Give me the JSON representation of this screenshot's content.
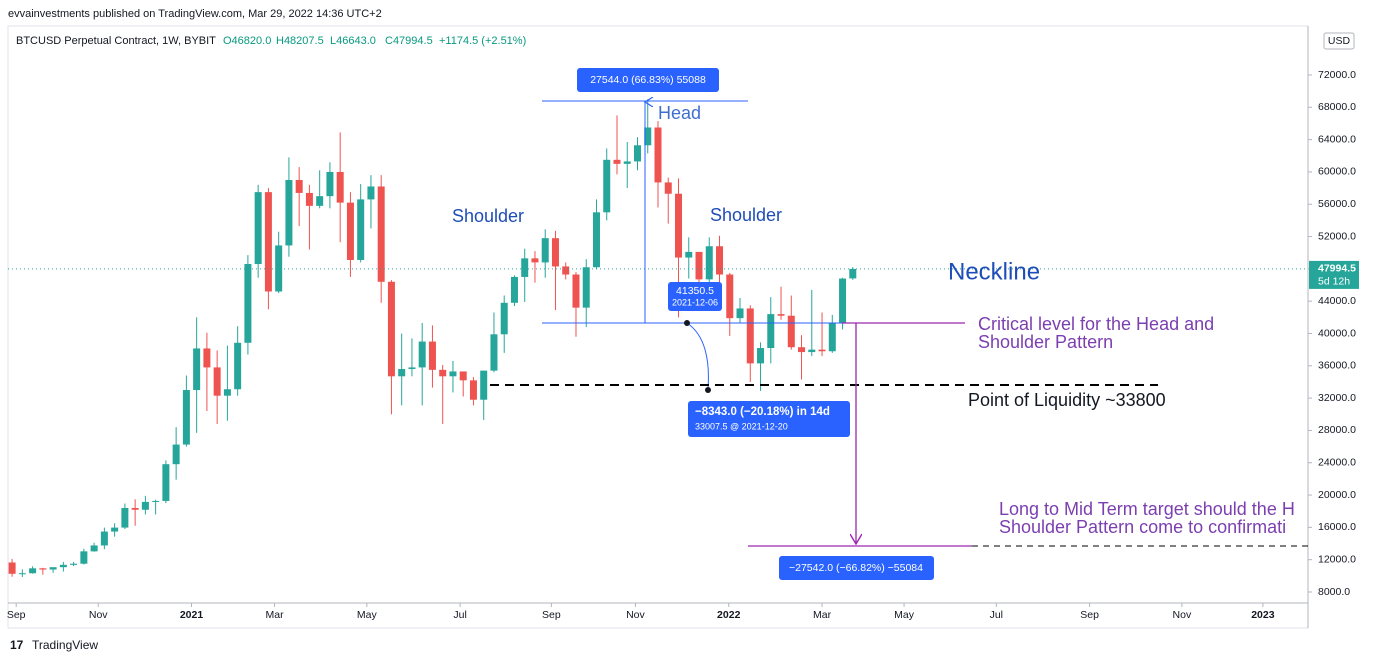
{
  "header": {
    "published": "evvainvestments published on TradingView.com, Mar 29, 2022 14:36 UTC+2",
    "symbol": "BTCUSD Perpetual Contract, 1W, BYBIT",
    "o": "O46820.0",
    "h": "H48207.5",
    "l": "L46643.0",
    "c": "C47994.5",
    "change": "+1174.5 (+2.51%)"
  },
  "chart_data": {
    "type": "candlestick",
    "open": [
      11650,
      10250,
      10320,
      10930,
      10780,
      11070,
      11360,
      11500,
      13030,
      13760,
      15480,
      15970,
      18400,
      18180,
      19150,
      19270,
      23820,
      26250,
      33000,
      38150,
      35800,
      32300,
      33100,
      38850,
      48600,
      57500,
      45200,
      50900,
      59000,
      57400,
      55800,
      57000,
      60000,
      56200,
      49100,
      56600,
      58200,
      46400,
      34700,
      35600,
      35800,
      39000,
      35500,
      34700,
      35300,
      34200,
      31800,
      35400,
      39900,
      43800,
      47000,
      49300,
      48800,
      51800,
      48300,
      47300,
      43200,
      48200,
      55000,
      61500,
      61000,
      61300,
      63300,
      65500,
      58700,
      57300,
      49400,
      50100,
      46700,
      50800,
      47300,
      41900,
      43100,
      36300,
      38200,
      42400,
      42200,
      38300,
      37700,
      38000,
      37800,
      41300,
      46820
    ],
    "high": [
      12090,
      10800,
      11180,
      10990,
      10950,
      11720,
      11730,
      13350,
      14100,
      15970,
      16500,
      18950,
      19480,
      19900,
      19420,
      24300,
      28400,
      34800,
      42000,
      40100,
      37900,
      38500,
      40900,
      49700,
      58400,
      58000,
      52600,
      61800,
      60600,
      58400,
      60200,
      61200,
      64900,
      57500,
      58500,
      59600,
      59600,
      46600,
      40000,
      39400,
      41300,
      41000,
      36100,
      36600,
      35300,
      34600,
      35400,
      42600,
      44700,
      47200,
      50500,
      50200,
      52900,
      52700,
      48800,
      47600,
      49200,
      56600,
      62900,
      67000,
      63700,
      64300,
      69000,
      66300,
      59300,
      59200,
      51900,
      50100,
      51900,
      52100,
      47500,
      44400,
      43500,
      38900,
      44500,
      45800,
      44700,
      39800,
      45400,
      42600,
      42300,
      46900,
      48207.5
    ],
    "low": [
      9880,
      9850,
      10270,
      10140,
      10370,
      10530,
      11200,
      11400,
      12980,
      13300,
      14850,
      15800,
      16200,
      17600,
      17600,
      19000,
      21900,
      26000,
      27700,
      30400,
      28800,
      29200,
      32300,
      37400,
      46900,
      43000,
      45000,
      49500,
      53300,
      50400,
      55500,
      55500,
      51300,
      47000,
      48800,
      53000,
      43800,
      30000,
      31100,
      34700,
      31100,
      33300,
      28800,
      32700,
      32200,
      31100,
      29300,
      35200,
      37600,
      43400,
      43900,
      46300,
      46900,
      42900,
      46700,
      39600,
      40800,
      48000,
      54000,
      59700,
      58000,
      60200,
      62300,
      55600,
      53600,
      42000,
      46800,
      45500,
      45600,
      45700,
      39700,
      41300,
      34000,
      32900,
      36300,
      41700,
      38000,
      34300,
      37200,
      37200,
      37600,
      40500,
      46643
    ],
    "close": [
      10250,
      10320,
      10930,
      10780,
      11070,
      11360,
      11500,
      13030,
      13760,
      15480,
      15970,
      18400,
      18180,
      19150,
      19270,
      23820,
      26250,
      33000,
      38150,
      35800,
      32300,
      33100,
      38850,
      48600,
      57500,
      45200,
      50900,
      59000,
      57400,
      55800,
      57000,
      60000,
      56200,
      49100,
      56600,
      58200,
      46400,
      34700,
      35600,
      35800,
      39000,
      35500,
      34700,
      35300,
      34200,
      31800,
      35400,
      39900,
      43800,
      47000,
      49300,
      48800,
      51800,
      48300,
      47300,
      43200,
      48200,
      55000,
      61500,
      61000,
      61300,
      63300,
      65500,
      58700,
      57300,
      49400,
      50100,
      46700,
      50800,
      47300,
      41900,
      43100,
      36300,
      38200,
      42400,
      42200,
      38300,
      37700,
      38000,
      37800,
      41300,
      46800,
      47994.5
    ],
    "up_color": "#26a69a",
    "down_color": "#ef5350",
    "ylim": [
      6760,
      77570
    ],
    "yticks": [
      {
        "value": 8000,
        "label": "8000.0"
      },
      {
        "value": 12000,
        "label": "12000.0"
      },
      {
        "value": 16000,
        "label": "16000.0"
      },
      {
        "value": 20000,
        "label": "20000.0"
      },
      {
        "value": 24000,
        "label": "24000.0"
      },
      {
        "value": 28000,
        "label": "28000.0"
      },
      {
        "value": 32000,
        "label": "32000.0"
      },
      {
        "value": 36000,
        "label": "36000.0"
      },
      {
        "value": 40000,
        "label": "40000.0"
      },
      {
        "value": 44000,
        "label": "44000.0"
      },
      {
        "value": 48000,
        "label": "48000.0"
      },
      {
        "value": 52000,
        "label": "52000.0"
      },
      {
        "value": 56000,
        "label": "56000.0"
      },
      {
        "value": 60000,
        "label": "60000.0"
      },
      {
        "value": 64000,
        "label": "64000.0"
      },
      {
        "value": 68000,
        "label": "68000.0"
      },
      {
        "value": 72000,
        "label": "72000.0"
      }
    ],
    "xlim": [
      -0.4,
      126.4
    ],
    "xticks": [
      {
        "value": 0.4,
        "label": "Sep"
      },
      {
        "value": 8.4,
        "label": "Nov"
      },
      {
        "value": 17.5,
        "label": "2021"
      },
      {
        "value": 25.6,
        "label": "Mar"
      },
      {
        "value": 34.6,
        "label": "May"
      },
      {
        "value": 43.7,
        "label": "Jul"
      },
      {
        "value": 52.6,
        "label": "Sep"
      },
      {
        "value": 60.8,
        "label": "Nov"
      },
      {
        "value": 69.9,
        "label": "2022"
      },
      {
        "value": 79.0,
        "label": "Mar"
      },
      {
        "value": 87.0,
        "label": "May"
      },
      {
        "value": 96.0,
        "label": "Jul"
      },
      {
        "value": 105.1,
        "label": "Sep"
      },
      {
        "value": 114.1,
        "label": "Nov"
      },
      {
        "value": 122.0,
        "label": "2023"
      }
    ],
    "currency": "USD",
    "countdown": "5d 12h",
    "annotations": {
      "head": "Head",
      "left_shoulder": "Shoulder",
      "right_shoulder": "Shoulder",
      "neckline": "Neckline",
      "critical": [
        "Critical level for the Head and",
        "Shoulder Pattern"
      ],
      "liquidity": "Point of Liquidity ~33800",
      "target": [
        "Long to Mid Term target should the H",
        "Shoulder Pattern come to confirmati"
      ],
      "measure_up": "27544.0 (66.83%) 55088",
      "point": [
        "41350.5",
        "2021-12-06"
      ],
      "measure_drop": [
        "−8343.0 (−20.18%) in 14d",
        "33007.5 @ 2021-12-20"
      ],
      "measure_target": "−27542.0 (−66.82%) −55084"
    }
  },
  "footer": "TradingView"
}
